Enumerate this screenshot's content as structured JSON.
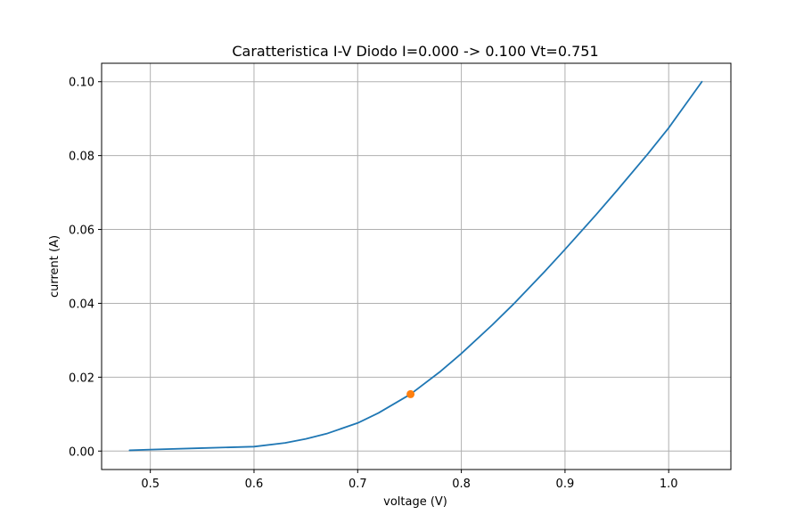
{
  "chart_data": {
    "type": "line",
    "title": "Caratteristica I-V Diodo I=0.000 -> 0.100 Vt=0.751",
    "xlabel": "voltage (V)",
    "ylabel": "current (A)",
    "xlim": [
      0.453,
      1.06
    ],
    "ylim": [
      -0.005,
      0.105
    ],
    "grid": true,
    "xticks": [
      0.5,
      0.6,
      0.7,
      0.8,
      0.9,
      1.0
    ],
    "xtick_labels": [
      "0.5",
      "0.6",
      "0.7",
      "0.8",
      "0.9",
      "1.0"
    ],
    "yticks": [
      0.0,
      0.02,
      0.04,
      0.06,
      0.08,
      0.1
    ],
    "ytick_labels": [
      "0.00",
      "0.02",
      "0.04",
      "0.06",
      "0.08",
      "0.10"
    ],
    "series": [
      {
        "type": "line",
        "color": "#1f77b4",
        "x": [
          0.48,
          0.5,
          0.55,
          0.6,
          0.63,
          0.65,
          0.67,
          0.7,
          0.72,
          0.751,
          0.78,
          0.8,
          0.83,
          0.85,
          0.88,
          0.9,
          0.93,
          0.95,
          0.98,
          1.0,
          1.032
        ],
        "y": [
          0.0002,
          0.0004,
          0.0008,
          0.0012,
          0.0022,
          0.0033,
          0.0047,
          0.0076,
          0.0103,
          0.0154,
          0.0216,
          0.0264,
          0.0342,
          0.0397,
          0.0485,
          0.0546,
          0.064,
          0.0705,
          0.0805,
          0.0875,
          0.1
        ]
      },
      {
        "type": "scatter",
        "color": "#ff7f0e",
        "x": [
          0.751
        ],
        "y": [
          0.0154
        ]
      }
    ]
  }
}
